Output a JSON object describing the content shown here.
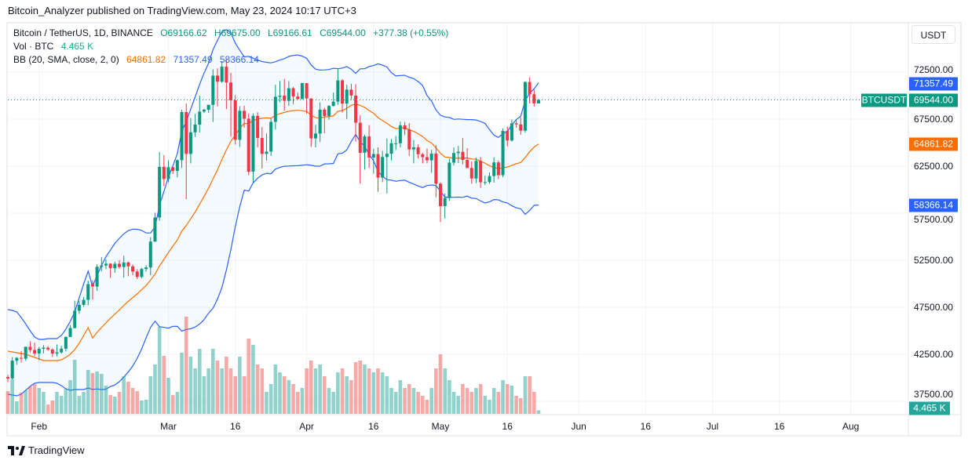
{
  "publisher_line": "Bitcoin_Analyzer published on TradingView.com, May 23, 2024 10:17 UTC+3",
  "legend": {
    "symbol": "Bitcoin / TetherUS, 1D, BINANCE",
    "open": "O69166.62",
    "high": "H69675.00",
    "low": "L69166.61",
    "close": "C69544.00",
    "change": "+377.38 (+0.55%)",
    "vol_label": "Vol · BTC",
    "vol_value": "4.465 K",
    "bb_label": "BB (20, SMA, close, 2, 0)",
    "bb_basis": "64861.82",
    "bb_upper": "71357.49",
    "bb_lower": "58366.14"
  },
  "price_axis": {
    "currency": "USDT",
    "symbol_tag": "BTCUSDT",
    "last_price": "69544.00",
    "upper_label": "71357.49",
    "basis_label": "64861.82",
    "lower_label": "58366.14",
    "volume_label": "4.465 K"
  },
  "brand": "TradingView",
  "colors": {
    "up": "#089981",
    "down": "#f23645",
    "vol_up": "rgba(38,166,154,0.5)",
    "vol_down": "rgba(239,83,80,0.5)",
    "bb_band": "#2962ff",
    "bb_basis": "#ff6d00",
    "bb_fill": "rgba(33,150,243,0.05)",
    "last_line": "#089981"
  },
  "chart_data": {
    "type": "candlestick",
    "title": "Bitcoin / TetherUS, 1D, BINANCE",
    "start_date": "2024-01-25",
    "end_date": "2024-05-23",
    "ylim": [
      35500,
      75500
    ],
    "y_ticks": [
      "72500.00",
      "67500.00",
      "62500.00",
      "57500.00",
      "52500.00",
      "47500.00",
      "42500.00",
      "37500.00"
    ],
    "y_tick_values": [
      72500,
      67500,
      62500,
      57500,
      52500,
      47500,
      42500,
      37500
    ],
    "x_ticks": [
      {
        "label": "Feb",
        "date": "2024-02-01"
      },
      {
        "label": "Mar",
        "date": "2024-03-01"
      },
      {
        "label": "16",
        "date": "2024-03-16"
      },
      {
        "label": "Apr",
        "date": "2024-04-01"
      },
      {
        "label": "16",
        "date": "2024-04-16"
      },
      {
        "label": "May",
        "date": "2024-05-01"
      },
      {
        "label": "16",
        "date": "2024-05-16"
      },
      {
        "label": "Jun",
        "date": "2024-06-01"
      },
      {
        "label": "16",
        "date": "2024-06-16"
      },
      {
        "label": "Jul",
        "date": "2024-07-01"
      },
      {
        "label": "16",
        "date": "2024-07-16"
      },
      {
        "label": "Aug",
        "date": "2024-08-01"
      }
    ],
    "grid": true,
    "candle_fields": [
      "open",
      "high",
      "low",
      "close",
      "volume_K_BTC"
    ],
    "candles": [
      [
        40080,
        40300,
        39550,
        39930,
        29
      ],
      [
        39930,
        42200,
        39800,
        41820,
        44
      ],
      [
        41820,
        42200,
        41400,
        42120,
        16
      ],
      [
        42120,
        42840,
        41620,
        42030,
        27
      ],
      [
        42030,
        43300,
        41800,
        43300,
        30
      ],
      [
        43300,
        43880,
        42700,
        42950,
        35
      ],
      [
        42950,
        43750,
        42300,
        42580,
        38
      ],
      [
        42580,
        43290,
        41880,
        43080,
        33
      ],
      [
        43080,
        43480,
        42600,
        43200,
        28
      ],
      [
        43200,
        43380,
        42880,
        43010,
        12
      ],
      [
        43010,
        43120,
        42220,
        42580,
        17
      ],
      [
        42580,
        43540,
        42260,
        42700,
        28
      ],
      [
        42700,
        43400,
        42580,
        43090,
        23
      ],
      [
        43090,
        44400,
        42800,
        44340,
        32
      ],
      [
        44340,
        45600,
        44330,
        45290,
        43
      ],
      [
        45290,
        48200,
        45250,
        47130,
        69
      ],
      [
        47130,
        48170,
        46800,
        47750,
        23
      ],
      [
        47750,
        48590,
        47550,
        48290,
        28
      ],
      [
        48290,
        50330,
        47700,
        49960,
        56
      ],
      [
        49960,
        50370,
        48300,
        49700,
        52
      ],
      [
        49700,
        52050,
        49250,
        51800,
        54
      ],
      [
        51800,
        52820,
        51300,
        51940,
        51
      ],
      [
        51940,
        52570,
        51550,
        52130,
        36
      ],
      [
        52130,
        52190,
        50620,
        51650,
        24
      ],
      [
        51650,
        52350,
        51160,
        52120,
        22
      ],
      [
        52120,
        52490,
        51600,
        51780,
        28
      ],
      [
        51780,
        52980,
        50650,
        52260,
        48
      ],
      [
        52260,
        52370,
        50800,
        51850,
        41
      ],
      [
        51850,
        52040,
        50900,
        51300,
        33
      ],
      [
        51300,
        51550,
        50500,
        50730,
        29
      ],
      [
        50730,
        51700,
        50580,
        51570,
        17
      ],
      [
        51570,
        51950,
        51280,
        51730,
        18
      ],
      [
        51730,
        54950,
        50900,
        54480,
        48
      ],
      [
        54480,
        57550,
        54450,
        57040,
        63
      ],
      [
        57040,
        64000,
        56700,
        62430,
        111
      ],
      [
        62430,
        63680,
        60360,
        61130,
        74
      ],
      [
        61130,
        63110,
        60790,
        62390,
        46
      ],
      [
        62390,
        62430,
        61670,
        61990,
        24
      ],
      [
        61990,
        63230,
        61310,
        63130,
        28
      ],
      [
        63130,
        68500,
        62310,
        68250,
        78
      ],
      [
        68250,
        69170,
        59000,
        63800,
        124
      ],
      [
        63800,
        67640,
        62800,
        66100,
        73
      ],
      [
        66100,
        68060,
        65600,
        66920,
        58
      ],
      [
        66920,
        69990,
        66080,
        68300,
        83
      ],
      [
        68300,
        68600,
        68150,
        68500,
        48
      ],
      [
        68500,
        69020,
        68180,
        69020,
        58
      ],
      [
        69020,
        72800,
        67200,
        72120,
        83
      ],
      [
        72120,
        72900,
        68850,
        71480,
        68
      ],
      [
        71480,
        73650,
        71350,
        73080,
        58
      ],
      [
        73080,
        73780,
        68570,
        71390,
        73
      ],
      [
        71390,
        72430,
        65630,
        69500,
        58
      ],
      [
        69500,
        70050,
        64800,
        65300,
        48
      ],
      [
        65300,
        68880,
        64560,
        68390,
        73
      ],
      [
        68390,
        68930,
        66600,
        67550,
        48
      ],
      [
        67550,
        68110,
        61540,
        61910,
        96
      ],
      [
        61910,
        68100,
        60760,
        67850,
        88
      ],
      [
        67850,
        68230,
        64520,
        65500,
        63
      ],
      [
        65500,
        66650,
        62260,
        63800,
        58
      ],
      [
        63800,
        65970,
        63100,
        64050,
        28
      ],
      [
        64050,
        67600,
        63580,
        67210,
        38
      ],
      [
        67210,
        71150,
        66390,
        69880,
        63
      ],
      [
        69880,
        71560,
        69300,
        69990,
        53
      ],
      [
        69990,
        71770,
        68400,
        69450,
        48
      ],
      [
        69450,
        71550,
        68900,
        70780,
        43
      ],
      [
        70780,
        70930,
        69100,
        69900,
        38
      ],
      [
        69900,
        70350,
        69550,
        69650,
        28
      ],
      [
        69650,
        71370,
        69560,
        71330,
        33
      ],
      [
        71330,
        71330,
        68070,
        69700,
        58
      ],
      [
        69700,
        69700,
        64550,
        65450,
        68
      ],
      [
        65450,
        66900,
        64500,
        65970,
        58
      ],
      [
        65970,
        69290,
        65060,
        68510,
        63
      ],
      [
        68510,
        68720,
        66000,
        67840,
        48
      ],
      [
        67840,
        69000,
        67440,
        68900,
        33
      ],
      [
        68900,
        70330,
        68860,
        69360,
        28
      ],
      [
        69360,
        72800,
        69040,
        71620,
        53
      ],
      [
        71620,
        71760,
        68210,
        69150,
        58
      ],
      [
        69150,
        71170,
        67520,
        70640,
        48
      ],
      [
        70640,
        71260,
        69550,
        70010,
        43
      ],
      [
        70010,
        71230,
        65100,
        67120,
        66
      ],
      [
        67120,
        67930,
        60660,
        63920,
        68
      ],
      [
        63920,
        65840,
        62130,
        65660,
        63
      ],
      [
        65660,
        66870,
        62300,
        63420,
        58
      ],
      [
        63420,
        64360,
        61700,
        63790,
        53
      ],
      [
        63790,
        64500,
        59770,
        61280,
        58
      ],
      [
        61280,
        64130,
        60800,
        63470,
        53
      ],
      [
        63470,
        65450,
        59600,
        63820,
        48
      ],
      [
        63820,
        65390,
        63100,
        64940,
        33
      ],
      [
        64940,
        65700,
        64230,
        64940,
        28
      ],
      [
        64940,
        67230,
        64500,
        66840,
        43
      ],
      [
        66840,
        67200,
        65800,
        66410,
        33
      ],
      [
        66410,
        67080,
        63600,
        64280,
        38
      ],
      [
        64280,
        65290,
        62800,
        64500,
        33
      ],
      [
        64500,
        64800,
        63310,
        63770,
        28
      ],
      [
        63770,
        63920,
        62790,
        63460,
        23
      ],
      [
        63460,
        64370,
        62800,
        63120,
        18
      ],
      [
        63120,
        64230,
        61800,
        63840,
        33
      ],
      [
        63840,
        64730,
        59190,
        60640,
        58
      ],
      [
        60640,
        60780,
        56550,
        58250,
        76
      ],
      [
        58250,
        59600,
        56940,
        59120,
        58
      ],
      [
        59120,
        63300,
        58800,
        62880,
        43
      ],
      [
        62880,
        64500,
        62580,
        63890,
        28
      ],
      [
        63890,
        64650,
        62830,
        64030,
        23
      ],
      [
        64030,
        65500,
        62700,
        63160,
        38
      ],
      [
        63160,
        64420,
        62300,
        62310,
        33
      ],
      [
        62310,
        63000,
        60630,
        61190,
        28
      ],
      [
        61190,
        63420,
        60700,
        63070,
        33
      ],
      [
        63070,
        63470,
        60190,
        60790,
        38
      ],
      [
        60790,
        61490,
        60490,
        60800,
        23
      ],
      [
        60800,
        61830,
        60630,
        61450,
        18
      ],
      [
        61450,
        63450,
        60750,
        62900,
        33
      ],
      [
        62900,
        63100,
        61120,
        61550,
        28
      ],
      [
        61550,
        66500,
        61320,
        66250,
        43
      ],
      [
        66250,
        66700,
        64600,
        65230,
        38
      ],
      [
        65230,
        67450,
        65100,
        67050,
        36
      ],
      [
        67050,
        67400,
        66600,
        66940,
        23
      ],
      [
        66940,
        67700,
        65850,
        66270,
        20
      ],
      [
        66270,
        71500,
        66060,
        71450,
        48
      ],
      [
        71450,
        71950,
        69160,
        70140,
        48
      ],
      [
        70140,
        70630,
        68850,
        69170,
        28
      ],
      [
        69166.62,
        69675,
        69166.61,
        69544,
        4.465
      ]
    ],
    "bollinger": {
      "name": "BB (20, SMA, close, 2, 0)",
      "leading_basis": [
        42830,
        42750,
        42670,
        42580,
        42500,
        42330,
        42170,
        42000,
        41830,
        41830,
        41830,
        41830,
        41920,
        42170,
        42500,
        43000,
        43670,
        44500,
        45330
      ],
      "leading_upper": [
        47250,
        47170,
        47000,
        46420,
        45750,
        45000,
        44330,
        44080,
        44080,
        44170,
        44170,
        44170,
        44500,
        45170,
        46000,
        47000,
        48500,
        50000,
        51330
      ],
      "leading_lower": [
        38250,
        38170,
        38080,
        38250,
        38670,
        39080,
        39420,
        39500,
        39500,
        39500,
        39500,
        39420,
        39170,
        38830,
        38670,
        38750,
        38750,
        38750,
        38920
      ],
      "last_basis": 64861.82,
      "last_upper": 71357.49,
      "last_lower": 58366.14
    }
  }
}
